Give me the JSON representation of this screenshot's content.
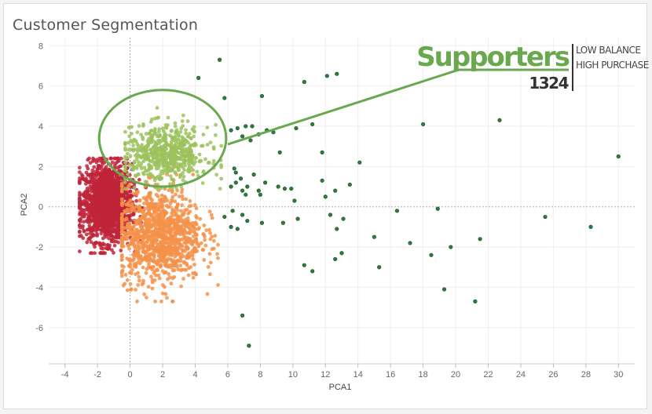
{
  "chart_data": {
    "type": "scatter",
    "title": "Customer Segmentation",
    "xlabel": "PCA1",
    "ylabel": "PCA2",
    "xlim": [
      -5,
      31
    ],
    "ylim": [
      -7.8,
      8.4
    ],
    "xticks": [
      -4,
      -2,
      0,
      2,
      4,
      6,
      8,
      10,
      12,
      14,
      16,
      18,
      20,
      22,
      24,
      26,
      28,
      30
    ],
    "yticks": [
      -6,
      -4,
      -2,
      0,
      2,
      4,
      6,
      8
    ],
    "grid": true,
    "series": [
      {
        "color": "#c0243a",
        "cluster": {
          "cx": -1.4,
          "cy": 0.2,
          "sx": 0.75,
          "sy": 0.95,
          "xmin": -3.1,
          "xmax": 1.0,
          "ymin": -2.3,
          "ymax": 2.4,
          "n": 1700
        }
      },
      {
        "color": "#f4924a",
        "cluster": {
          "cx": 1.8,
          "cy": -1.4,
          "sx": 1.3,
          "sy": 1.15,
          "xmin": -0.5,
          "xmax": 5.4,
          "ymin": -4.7,
          "ymax": 1.6,
          "n": 1100
        }
      },
      {
        "color": "#9cc25e",
        "cluster": {
          "cx": 2.2,
          "cy": 2.6,
          "sx": 1.3,
          "sy": 0.7,
          "xmin": -0.3,
          "xmax": 5.6,
          "ymin": 0.9,
          "ymax": 5.2,
          "n": 600
        }
      },
      {
        "color": "#2e7d3e",
        "points": [
          [
            5.5,
            7.3
          ],
          [
            4.2,
            6.4
          ],
          [
            5.8,
            5.4
          ],
          [
            8.1,
            5.5
          ],
          [
            10.7,
            6.2
          ],
          [
            12.1,
            6.5
          ],
          [
            12.7,
            6.6
          ],
          [
            6.2,
            3.8
          ],
          [
            6.6,
            3.9
          ],
          [
            7.1,
            4.0
          ],
          [
            7.5,
            4.0
          ],
          [
            8.4,
            3.8
          ],
          [
            8.8,
            3.7
          ],
          [
            6.9,
            3.5
          ],
          [
            7.4,
            3.3
          ],
          [
            7.9,
            3.6
          ],
          [
            10.2,
            3.9
          ],
          [
            11.2,
            4.1
          ],
          [
            18.0,
            4.1
          ],
          [
            22.7,
            4.3
          ],
          [
            9.2,
            2.7
          ],
          [
            11.8,
            2.7
          ],
          [
            14.1,
            2.2
          ],
          [
            30.0,
            2.5
          ],
          [
            6.4,
            1.9
          ],
          [
            6.5,
            1.7
          ],
          [
            6.8,
            1.4
          ],
          [
            7.6,
            1.6
          ],
          [
            8.3,
            1.2
          ],
          [
            9.1,
            1.0
          ],
          [
            7.2,
            1.0
          ],
          [
            6.9,
            0.8
          ],
          [
            6.2,
            1.0
          ],
          [
            6.5,
            1.2
          ],
          [
            7.9,
            0.8
          ],
          [
            9.5,
            0.9
          ],
          [
            9.9,
            0.9
          ],
          [
            10.1,
            0.3
          ],
          [
            11.8,
            1.3
          ],
          [
            13.5,
            1.1
          ],
          [
            12.6,
            0.8
          ],
          [
            12.0,
            0.5
          ],
          [
            7.1,
            0.6
          ],
          [
            8.0,
            0.6
          ],
          [
            6.3,
            -0.2
          ],
          [
            6.9,
            -0.4
          ],
          [
            5.8,
            -0.5
          ],
          [
            6.2,
            -1.0
          ],
          [
            6.6,
            -1.1
          ],
          [
            7.2,
            -0.7
          ],
          [
            8.1,
            -0.8
          ],
          [
            9.4,
            -0.8
          ],
          [
            10.3,
            -0.6
          ],
          [
            12.3,
            -0.4
          ],
          [
            12.7,
            -1.1
          ],
          [
            13.1,
            -0.6
          ],
          [
            16.4,
            -0.2
          ],
          [
            18.9,
            -0.1
          ],
          [
            25.5,
            -0.5
          ],
          [
            28.3,
            -1.0
          ],
          [
            15.0,
            -1.5
          ],
          [
            17.2,
            -1.8
          ],
          [
            21.5,
            -1.6
          ],
          [
            19.7,
            -2.0
          ],
          [
            18.5,
            -2.4
          ],
          [
            13.0,
            -2.3
          ],
          [
            12.6,
            -2.6
          ],
          [
            10.7,
            -2.9
          ],
          [
            11.2,
            -3.2
          ],
          [
            15.3,
            -3.0
          ],
          [
            19.3,
            -4.1
          ],
          [
            21.2,
            -4.7
          ],
          [
            6.9,
            -5.4
          ],
          [
            7.3,
            -6.9
          ]
        ]
      }
    ]
  },
  "annotation": {
    "segment_name": "Supporters",
    "count": "1324",
    "line1": "LOW BALANCE",
    "line2": "HIGH PURCHASE",
    "ellipse": {
      "cx": 2.0,
      "cy": 3.4,
      "rx": 3.9,
      "ry": 2.4
    },
    "leader_start": [
      6.0,
      3.1
    ],
    "accent_color": "#6aa84f"
  }
}
